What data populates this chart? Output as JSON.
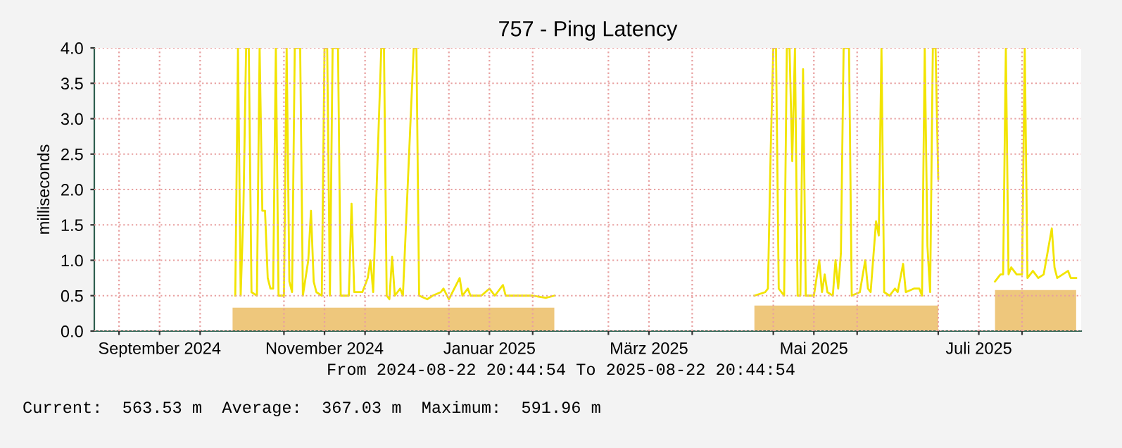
{
  "chart_data": {
    "type": "line",
    "title": "757 - Ping Latency",
    "ylabel": "milliseconds",
    "annotations": [
      "From 2024-08-22 20:44:54 To 2025-08-22 20:44:54",
      "Current:  563.53 m  Average:  367.03 m  Maximum:  591.96 m"
    ],
    "xlim": [
      "2024-08-22T20:44",
      "2025-08-22T20:44"
    ],
    "xticks": [
      {
        "value": "2024-09-01",
        "label": null
      },
      {
        "value": "2024-09-16",
        "label": "September 2024"
      },
      {
        "value": "2024-10-01",
        "label": null
      },
      {
        "value": "2024-11-01",
        "label": null
      },
      {
        "value": "2024-11-16",
        "label": "November 2024"
      },
      {
        "value": "2024-12-01",
        "label": null
      },
      {
        "value": "2025-01-01",
        "label": null
      },
      {
        "value": "2025-01-16",
        "label": "Januar 2025"
      },
      {
        "value": "2025-02-01",
        "label": null
      },
      {
        "value": "2025-03-01",
        "label": null
      },
      {
        "value": "2025-03-16",
        "label": "März 2025"
      },
      {
        "value": "2025-04-01",
        "label": null
      },
      {
        "value": "2025-05-01",
        "label": null
      },
      {
        "value": "2025-05-16",
        "label": "Mai 2025"
      },
      {
        "value": "2025-06-01",
        "label": null
      },
      {
        "value": "2025-07-01",
        "label": null
      },
      {
        "value": "2025-07-16",
        "label": "Juli 2025"
      },
      {
        "value": "2025-08-01",
        "label": null
      }
    ],
    "ylim": [
      0,
      4
    ],
    "yticks": [
      {
        "value": 0,
        "label": "0.0"
      },
      {
        "value": 0.5,
        "label": "0.5"
      },
      {
        "value": 1,
        "label": "1.0"
      },
      {
        "value": 1.5,
        "label": "1.5"
      },
      {
        "value": 2,
        "label": "2.0"
      },
      {
        "value": 2.5,
        "label": "2.5"
      },
      {
        "value": 3,
        "label": "3.0"
      },
      {
        "value": 3.5,
        "label": "3.5"
      },
      {
        "value": 4,
        "label": "4.0"
      }
    ],
    "grid": true,
    "series": [
      {
        "type": "area",
        "color": "#eec77c",
        "x": [
          "2024-10-13",
          "2025-02-09",
          "2025-03-10",
          "2025-04-24",
          "2025-07-01",
          "2025-07-08",
          "2025-07-22",
          "2025-08-21"
        ],
        "values": [
          0.33,
          0.33,
          null,
          0.36,
          0.36,
          null,
          0.58,
          0.58
        ]
      },
      {
        "color": "#f2e400",
        "x": [
          "2024-10-14",
          "2024-10-15",
          "2024-10-16",
          "2024-10-17",
          "2024-10-18",
          "2024-10-19",
          "2024-10-20",
          "2024-10-22",
          "2024-10-23",
          "2024-10-24",
          "2024-10-25",
          "2024-10-26",
          "2024-10-27",
          "2024-10-28",
          "2024-10-29",
          "2024-10-30",
          "2024-11-01",
          "2024-11-02",
          "2024-11-03",
          "2024-11-04",
          "2024-11-05",
          "2024-11-07",
          "2024-11-08",
          "2024-11-10",
          "2024-11-11",
          "2024-11-12",
          "2024-11-13",
          "2024-11-15",
          "2024-11-16",
          "2024-11-17",
          "2024-11-18",
          "2024-11-19",
          "2024-11-21",
          "2024-11-22",
          "2024-11-25",
          "2024-11-26",
          "2024-11-27",
          "2024-11-30",
          "2024-12-02",
          "2024-12-03",
          "2024-12-04",
          "2024-12-07",
          "2024-12-08",
          "2024-12-09",
          "2024-12-10",
          "2024-12-11",
          "2024-12-12",
          "2024-12-14",
          "2024-12-15",
          "2024-12-19",
          "2024-12-20",
          "2024-12-21",
          "2024-12-24",
          "2024-12-26",
          "2024-12-29",
          "2024-12-30",
          "2025-01-01",
          "2025-01-05",
          "2025-01-06",
          "2025-01-08",
          "2025-01-09",
          "2025-01-13",
          "2025-01-16",
          "2025-01-18",
          "2025-01-21",
          "2025-01-22",
          "2025-01-27",
          "2025-02-01",
          "2025-02-06",
          "2025-02-09",
          "2025-03-10",
          "2025-04-24",
          "2025-04-28",
          "2025-04-29",
          "2025-04-30",
          "2025-05-01",
          "2025-05-02",
          "2025-05-03",
          "2025-05-05",
          "2025-05-06",
          "2025-05-07",
          "2025-05-08",
          "2025-05-09",
          "2025-05-10",
          "2025-05-11",
          "2025-05-12",
          "2025-05-13",
          "2025-05-16",
          "2025-05-18",
          "2025-05-19",
          "2025-05-20",
          "2025-05-21",
          "2025-05-23",
          "2025-05-24",
          "2025-05-25",
          "2025-05-26",
          "2025-05-27",
          "2025-05-29",
          "2025-05-30",
          "2025-06-02",
          "2025-06-04",
          "2025-06-05",
          "2025-06-06",
          "2025-06-08",
          "2025-06-09",
          "2025-06-10",
          "2025-06-11",
          "2025-06-13",
          "2025-06-15",
          "2025-06-16",
          "2025-06-18",
          "2025-06-19",
          "2025-06-22",
          "2025-06-24",
          "2025-06-25",
          "2025-06-26",
          "2025-06-27",
          "2025-06-28",
          "2025-06-29",
          "2025-06-30",
          "2025-07-01",
          "2025-07-08",
          "2025-07-22",
          "2025-07-24",
          "2025-07-25",
          "2025-07-26",
          "2025-07-27",
          "2025-07-28",
          "2025-07-30",
          "2025-08-01",
          "2025-08-02",
          "2025-08-03",
          "2025-08-05",
          "2025-08-07",
          "2025-08-09",
          "2025-08-12",
          "2025-08-13",
          "2025-08-14",
          "2025-08-16",
          "2025-08-18",
          "2025-08-19",
          "2025-08-21"
        ],
        "values": [
          0.5,
          4.0,
          0.5,
          1.7,
          4.0,
          4.0,
          0.55,
          0.5,
          4.0,
          1.7,
          1.7,
          0.75,
          0.6,
          0.6,
          4.0,
          0.5,
          0.5,
          4.0,
          0.7,
          0.55,
          4.0,
          4.0,
          0.5,
          1.0,
          1.7,
          0.7,
          0.55,
          0.5,
          4.0,
          4.0,
          0.5,
          4.0,
          4.0,
          0.5,
          0.5,
          1.8,
          0.55,
          0.55,
          0.75,
          1.0,
          0.55,
          4.0,
          4.0,
          0.5,
          0.45,
          1.05,
          0.5,
          0.6,
          0.5,
          4.0,
          4.0,
          0.5,
          0.45,
          0.5,
          0.55,
          0.6,
          0.45,
          0.75,
          0.5,
          0.6,
          0.5,
          0.5,
          0.6,
          0.5,
          0.65,
          0.5,
          0.5,
          0.5,
          0.47,
          0.5,
          null,
          0.5,
          0.55,
          0.6,
          2.5,
          4.0,
          4.0,
          0.6,
          0.5,
          4.0,
          4.0,
          2.4,
          4.0,
          0.5,
          0.5,
          3.7,
          0.5,
          0.5,
          1.0,
          0.55,
          0.8,
          0.55,
          0.5,
          1.0,
          0.6,
          1.1,
          4.0,
          4.0,
          0.5,
          0.55,
          1.0,
          0.6,
          0.55,
          1.55,
          1.35,
          4.0,
          0.55,
          0.5,
          0.6,
          0.55,
          0.95,
          0.55,
          0.6,
          0.6,
          0.5,
          4.0,
          1.2,
          0.55,
          4.0,
          4.0,
          2.15,
          null,
          0.7,
          0.8,
          0.8,
          4.0,
          0.8,
          0.9,
          0.8,
          0.8,
          4.0,
          0.75,
          0.85,
          0.75,
          0.8,
          1.45,
          0.9,
          0.75,
          0.8,
          0.85,
          0.75,
          0.75
        ]
      }
    ]
  }
}
